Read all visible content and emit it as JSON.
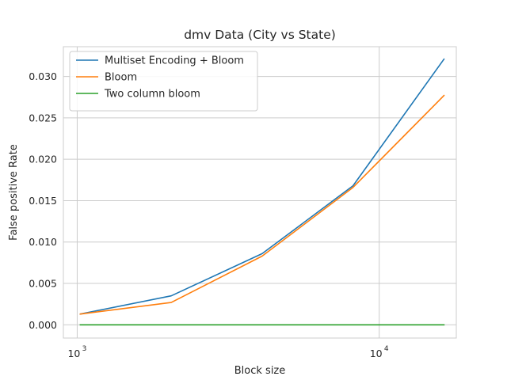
{
  "chart_data": {
    "type": "line",
    "title": "dmv Data (City vs State)",
    "xlabel": "Block size",
    "ylabel": "False positive Rate",
    "xscale": "log",
    "xlim": [
      900,
      18000
    ],
    "ylim": [
      -0.0016,
      0.0336
    ],
    "x_ticks": [
      {
        "value": 1000,
        "base": "10",
        "exp": "3"
      },
      {
        "value": 10000,
        "base": "10",
        "exp": "4"
      }
    ],
    "y_ticks": [
      0.0,
      0.005,
      0.01,
      0.015,
      0.02,
      0.025,
      0.03
    ],
    "y_tick_labels": [
      "0.000",
      "0.005",
      "0.010",
      "0.015",
      "0.020",
      "0.025",
      "0.030"
    ],
    "grid": true,
    "legend_position": "top-left",
    "x": [
      1024,
      2048,
      4096,
      8192,
      16384
    ],
    "series": [
      {
        "name": "Multiset Encoding + Bloom",
        "color": "#1f77b4",
        "values": [
          0.0013,
          0.0035,
          0.0086,
          0.0168,
          0.0321
        ]
      },
      {
        "name": "Bloom",
        "color": "#ff7f0e",
        "values": [
          0.0013,
          0.0027,
          0.0083,
          0.0166,
          0.0277
        ]
      },
      {
        "name": "Two column bloom",
        "color": "#2ca02c",
        "values": [
          0.0,
          0.0,
          0.0,
          0.0,
          0.0
        ]
      }
    ]
  }
}
